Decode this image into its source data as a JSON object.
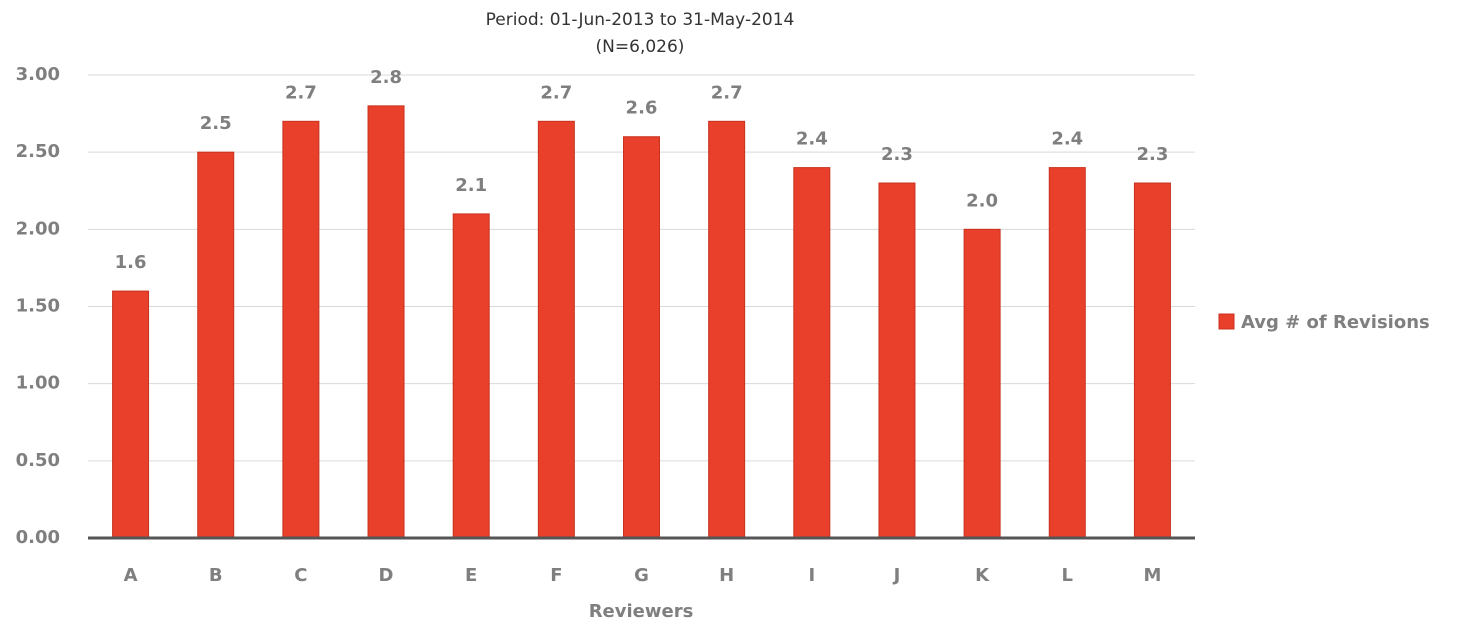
{
  "chart_data": {
    "type": "bar",
    "subtitle": "Period: 01-Jun-2013 to 31-May-2014",
    "subtitle_2": "(N=6,026)",
    "x_label": "Reviewers",
    "categories": [
      "A",
      "B",
      "C",
      "D",
      "E",
      "F",
      "G",
      "H",
      "I",
      "J",
      "K",
      "L",
      "M"
    ],
    "series": [
      {
        "name": "Avg # of Revisions",
        "color": "#e8402a",
        "values": [
          1.6,
          2.5,
          2.7,
          2.8,
          2.1,
          2.7,
          2.6,
          2.7,
          2.4,
          2.3,
          2.0,
          2.4,
          2.3
        ],
        "value_labels": [
          "1.6",
          "2.5",
          "2.7",
          "2.8",
          "2.1",
          "2.7",
          "2.6",
          "2.7",
          "2.4",
          "2.3",
          "2.0",
          "2.4",
          "2.3"
        ]
      }
    ],
    "ylim": [
      0,
      3
    ],
    "yticks": [
      {
        "value": 0,
        "label": "0.00"
      },
      {
        "value": 0.5,
        "label": "0.50"
      },
      {
        "value": 1,
        "label": "1.00"
      },
      {
        "value": 1.5,
        "label": "1.50"
      },
      {
        "value": 2,
        "label": "2.00"
      },
      {
        "value": 2.5,
        "label": "2.50"
      },
      {
        "value": 3,
        "label": "3.00"
      }
    ],
    "grid": true,
    "legend": "right"
  }
}
